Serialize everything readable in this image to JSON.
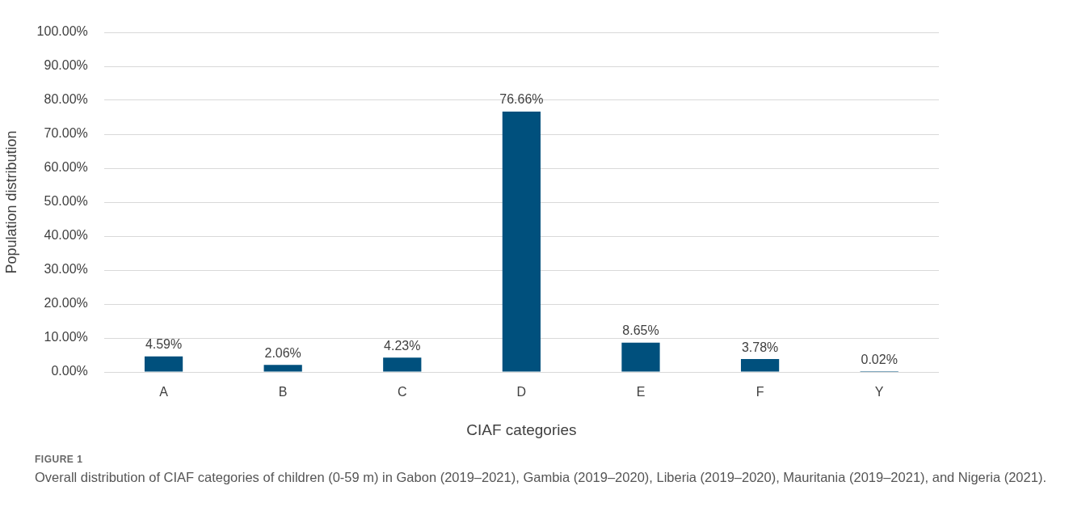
{
  "chart_data": {
    "type": "bar",
    "xlabel": "CIAF categories",
    "ylabel": "Population distribution",
    "categories": [
      "A",
      "B",
      "C",
      "D",
      "E",
      "F",
      "Y"
    ],
    "values": [
      4.59,
      2.06,
      4.23,
      76.66,
      8.65,
      3.78,
      0.02
    ],
    "value_labels": [
      "4.59%",
      "2.06%",
      "4.23%",
      "76.66%",
      "8.65%",
      "3.78%",
      "0.02%"
    ],
    "color": "#00507d",
    "ylim": [
      0,
      100
    ],
    "yticks": [
      {
        "value": 0,
        "label": "0.00%"
      },
      {
        "value": 10,
        "label": "10.00%"
      },
      {
        "value": 20,
        "label": "20.00%"
      },
      {
        "value": 30,
        "label": "30.00%"
      },
      {
        "value": 40,
        "label": "40.00%"
      },
      {
        "value": 50,
        "label": "50.00%"
      },
      {
        "value": 60,
        "label": "60.00%"
      },
      {
        "value": 70,
        "label": "70.00%"
      },
      {
        "value": 80,
        "label": "80.00%"
      },
      {
        "value": 90,
        "label": "90.00%"
      },
      {
        "value": 100,
        "label": "100.00%"
      }
    ],
    "grid": "y",
    "legend": false,
    "annotations": [
      "FIGURE 1",
      "Overall distribution of CIAF categories of children (0-59 m) in Gabon (2019–2021), Gambia (2019–2020), Liberia (2019–2020), Mauritania (2019–2021), and Nigeria (2021)."
    ]
  }
}
